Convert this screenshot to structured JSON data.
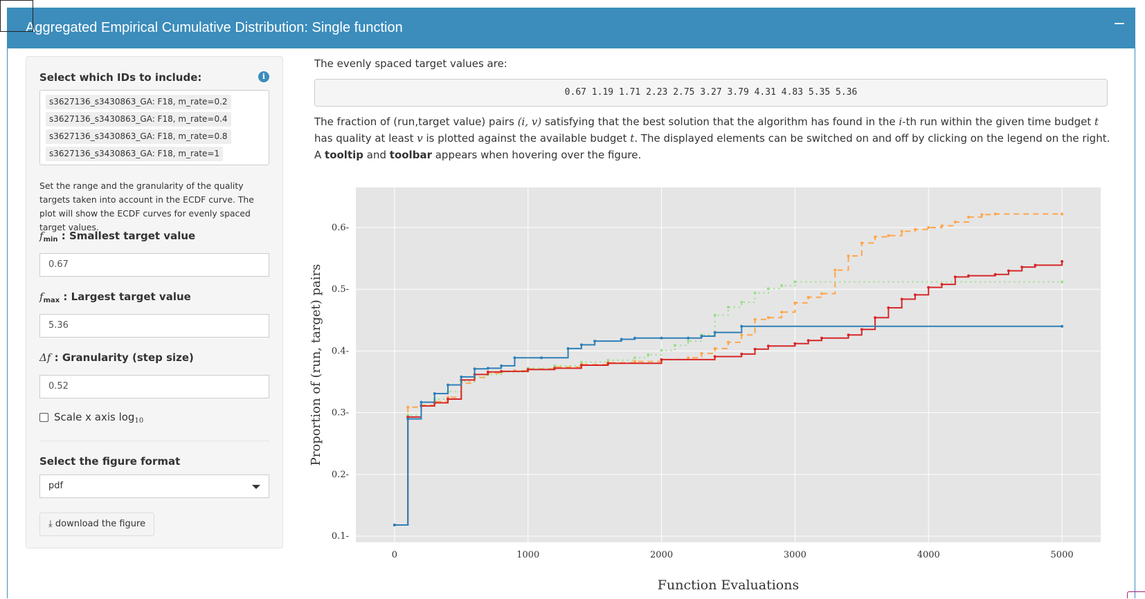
{
  "header": {
    "title": "Aggregated Empirical Cumulative Distribution: Single function",
    "collapse_label": "−"
  },
  "sidebar": {
    "ids_label": "Select which IDs to include:",
    "info_icon": "i",
    "ids": [
      "s3627136_s3430863_GA: F18, m_rate=0.2",
      "s3627136_s3430863_GA: F18, m_rate=0.4",
      "s3627136_s3430863_GA: F18, m_rate=0.8",
      "s3627136_s3430863_GA: F18, m_rate=1"
    ],
    "description": "Set the range and the granularity of the quality targets taken into account in the ECDF curve. The plot will show the ECDF curves for evenly spaced target values.",
    "fmin_symbol": "f",
    "fmin_sub": "min",
    "fmin_label": " : Smallest target value",
    "fmin_value": "0.67",
    "fmax_symbol": "f",
    "fmax_sub": "max",
    "fmax_label": " : Largest target value",
    "fmax_value": "5.36",
    "step_symbol": "Δf",
    "step_label": " : Granularity (step size)",
    "step_value": "0.52",
    "scale_label": "Scale x axis log",
    "scale_sub": "10",
    "format_label": "Select the figure format",
    "format_value": "pdf",
    "download_label": "download the figure"
  },
  "main": {
    "targets_intro": "The evenly spaced target values are:",
    "targets": "0.67 1.19 1.71 2.23 2.75 3.27 3.79 4.31 4.83 5.35 5.36",
    "para_1": "The fraction of (run,target value) pairs ",
    "para_pair": "(i, v)",
    "para_2": " satisfying that the best solution that the algorithm has found in the ",
    "para_i": "i",
    "para_3": "-th run within the given time budget ",
    "para_t": "t",
    "para_4": " has quality at least ",
    "para_v": "v",
    "para_5": " is plotted against the available budget ",
    "para_t2": "t",
    "para_6": ". The displayed elements can be switched on and off by clicking on the legend on the right. A ",
    "para_tooltip": "tooltip",
    "para_and": " and ",
    "para_toolbar": "toolbar",
    "para_7": " appears when hovering over the figure."
  },
  "colors": {
    "accent": "#3c8dbc",
    "series_blue": "#2e7fb8",
    "series_red": "#d62728",
    "series_orange": "#ffa54a",
    "series_green": "#98df8a"
  },
  "chart_data": {
    "type": "line",
    "title": "",
    "xlabel": "Function Evaluations",
    "ylabel": "Proportion of (run, target) pairs",
    "xlim": [
      -290,
      5290
    ],
    "ylim": [
      0.09,
      0.665
    ],
    "xticks": [
      0,
      1000,
      2000,
      3000,
      4000,
      5000
    ],
    "yticks": [
      0.1,
      0.2,
      0.3,
      0.4,
      0.5,
      0.6
    ],
    "xtick_labels": [
      "0",
      "1000",
      "2000",
      "3000",
      "4000",
      "5000"
    ],
    "ytick_labels": [
      "0.1",
      "0.2",
      "0.3",
      "0.4",
      "0.5",
      "0.6"
    ],
    "grid": true,
    "step": true,
    "series": [
      {
        "color": "#ffa54a",
        "dash": "8,6",
        "x": [
          0,
          100,
          200,
          300,
          400,
          500,
          600,
          700,
          800,
          900,
          1000,
          1200,
          1400,
          1600,
          1800,
          2000,
          2200,
          2300,
          2400,
          2500,
          2600,
          2700,
          2800,
          2900,
          3000,
          3100,
          3200,
          3300,
          3400,
          3500,
          3600,
          3700,
          3800,
          3900,
          4000,
          4100,
          4200,
          4300,
          4400,
          4500,
          5000
        ],
        "y": [
          0.118,
          0.309,
          0.312,
          0.318,
          0.325,
          0.348,
          0.357,
          0.364,
          0.367,
          0.368,
          0.371,
          0.374,
          0.378,
          0.381,
          0.383,
          0.386,
          0.389,
          0.396,
          0.404,
          0.414,
          0.426,
          0.451,
          0.454,
          0.463,
          0.478,
          0.487,
          0.493,
          0.531,
          0.554,
          0.575,
          0.585,
          0.587,
          0.594,
          0.597,
          0.6,
          0.603,
          0.609,
          0.617,
          0.621,
          0.622,
          0.622
        ]
      },
      {
        "color": "#98df8a",
        "dash": "2,5",
        "x": [
          0,
          100,
          200,
          300,
          400,
          500,
          600,
          700,
          800,
          1000,
          1200,
          1400,
          1600,
          1800,
          1900,
          2000,
          2100,
          2200,
          2300,
          2400,
          2500,
          2600,
          2700,
          2800,
          2900,
          3000,
          5000
        ],
        "y": [
          0.118,
          0.296,
          0.311,
          0.322,
          0.334,
          0.351,
          0.358,
          0.362,
          0.366,
          0.372,
          0.376,
          0.382,
          0.385,
          0.389,
          0.394,
          0.401,
          0.409,
          0.416,
          0.426,
          0.458,
          0.471,
          0.479,
          0.494,
          0.501,
          0.506,
          0.512,
          0.512
        ]
      },
      {
        "color": "#d62728",
        "dash": "",
        "x": [
          0,
          100,
          200,
          300,
          400,
          500,
          600,
          700,
          800,
          1000,
          1200,
          1400,
          1600,
          2000,
          2400,
          2600,
          2700,
          2800,
          3000,
          3100,
          3200,
          3400,
          3500,
          3600,
          3700,
          3800,
          3900,
          4000,
          4100,
          4200,
          4300,
          4500,
          4600,
          4700,
          4800,
          5000
        ],
        "y": [
          0.118,
          0.293,
          0.311,
          0.316,
          0.322,
          0.353,
          0.362,
          0.366,
          0.367,
          0.37,
          0.372,
          0.377,
          0.38,
          0.386,
          0.391,
          0.395,
          0.403,
          0.408,
          0.412,
          0.417,
          0.421,
          0.426,
          0.435,
          0.454,
          0.47,
          0.484,
          0.491,
          0.503,
          0.508,
          0.52,
          0.522,
          0.524,
          0.53,
          0.536,
          0.539,
          0.545
        ]
      },
      {
        "color": "#2e7fb8",
        "dash": "",
        "x": [
          0,
          100,
          200,
          300,
          400,
          500,
          600,
          700,
          800,
          900,
          1100,
          1300,
          1400,
          1500,
          1700,
          1800,
          2000,
          2200,
          2300,
          2400,
          2600,
          5000
        ],
        "y": [
          0.118,
          0.29,
          0.317,
          0.331,
          0.345,
          0.358,
          0.371,
          0.372,
          0.376,
          0.389,
          0.389,
          0.404,
          0.41,
          0.416,
          0.419,
          0.421,
          0.421,
          0.421,
          0.424,
          0.43,
          0.44,
          0.44
        ]
      }
    ]
  }
}
